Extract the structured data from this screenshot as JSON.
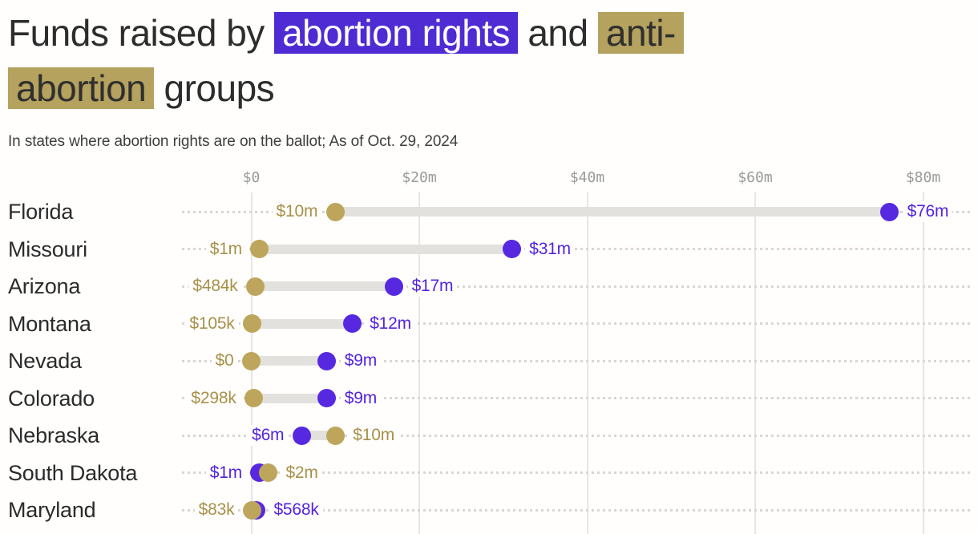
{
  "title": {
    "segments": [
      {
        "text": "Funds raised by ",
        "style": "plain"
      },
      {
        "text": "abortion rights",
        "style": "rights"
      },
      {
        "text": " and ",
        "style": "plain"
      },
      {
        "text": "anti-",
        "style": "anti"
      },
      {
        "style": "br"
      },
      {
        "text": "abortion",
        "style": "anti"
      },
      {
        "text": " groups",
        "style": "plain"
      }
    ],
    "full_text": "Funds raised by abortion rights and anti-abortion groups"
  },
  "subtitle": "In states where abortion rights are on the ballot; As of Oct. 29, 2024",
  "colors": {
    "rights_purple": "#5629e0",
    "rights_text": "#5223e2",
    "anti_gold": "#bda55c",
    "anti_text": "#a7914a",
    "title_highlight_purple": "#4e2bd3",
    "title_highlight_gold": "#b4a25e",
    "grid": "#e8e6e3",
    "connector": "#e3e1de",
    "axis_text": "#9a9a9a",
    "background": "#fffefc"
  },
  "chart_data": {
    "type": "dumbbell",
    "unit": "USD",
    "x_ticks": [
      "$0",
      "$20m",
      "$40m",
      "$60m",
      "$80m"
    ],
    "x_tick_values_m": [
      0,
      20,
      40,
      60,
      80
    ],
    "xlim_m": [
      0,
      80
    ],
    "grid": "vertical-lines-plus-dotted-row-leaders",
    "series_names": {
      "rights": "abortion rights",
      "anti": "anti-abortion"
    },
    "rows": [
      {
        "state": "Florida",
        "anti_value": 10000000,
        "anti_label": "$10m",
        "rights_value": 76000000,
        "rights_label": "$76m"
      },
      {
        "state": "Missouri",
        "anti_value": 1000000,
        "anti_label": "$1m",
        "rights_value": 31000000,
        "rights_label": "$31m"
      },
      {
        "state": "Arizona",
        "anti_value": 484000,
        "anti_label": "$484k",
        "rights_value": 17000000,
        "rights_label": "$17m"
      },
      {
        "state": "Montana",
        "anti_value": 105000,
        "anti_label": "$105k",
        "rights_value": 12000000,
        "rights_label": "$12m"
      },
      {
        "state": "Nevada",
        "anti_value": 0,
        "anti_label": "$0",
        "rights_value": 9000000,
        "rights_label": "$9m"
      },
      {
        "state": "Colorado",
        "anti_value": 298000,
        "anti_label": "$298k",
        "rights_value": 9000000,
        "rights_label": "$9m"
      },
      {
        "state": "Nebraska",
        "anti_value": 10000000,
        "anti_label": "$10m",
        "rights_value": 6000000,
        "rights_label": "$6m"
      },
      {
        "state": "South Dakota",
        "anti_value": 2000000,
        "anti_label": "$2m",
        "rights_value": 1000000,
        "rights_label": "$1m"
      },
      {
        "state": "Maryland",
        "anti_value": 83000,
        "anti_label": "$83k",
        "rights_value": 568000,
        "rights_label": "$568k"
      }
    ]
  }
}
